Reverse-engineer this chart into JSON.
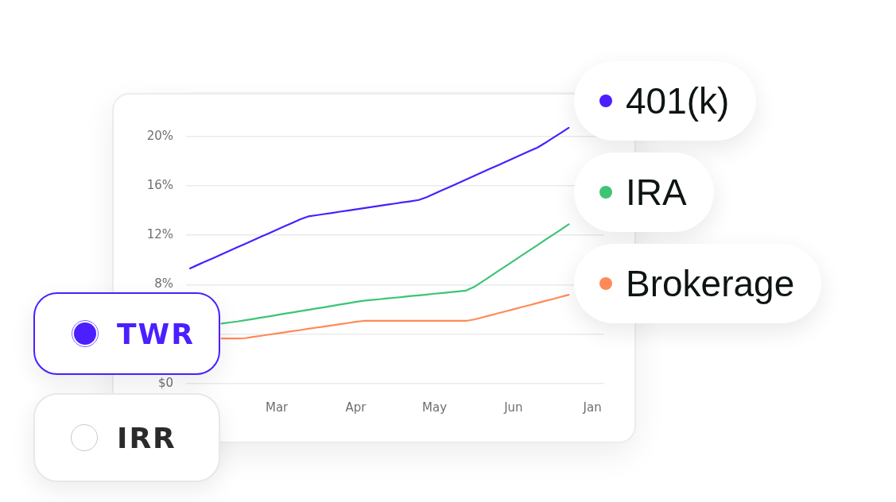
{
  "chart_data": {
    "type": "line",
    "categories": [
      null,
      null,
      null,
      null,
      null,
      null,
      null,
      null,
      null,
      null,
      null,
      "Mar",
      null,
      null,
      null,
      null,
      null,
      null,
      null,
      null,
      null,
      "Apr",
      null,
      null,
      null,
      null,
      null,
      null,
      null,
      null,
      null,
      "May",
      null,
      null,
      null,
      null,
      null,
      null,
      null,
      null,
      null,
      "Jun",
      null,
      null,
      null,
      null,
      null,
      null,
      null,
      null,
      null,
      "Jan",
      null
    ],
    "series": [
      {
        "name": "401(k)",
        "color": "#4b1fff",
        "values": [
          9.32,
          9.61,
          9.89,
          10.17,
          10.46,
          10.74,
          11.03,
          11.31,
          11.59,
          11.88,
          12.16,
          12.45,
          12.73,
          13.01,
          13.3,
          13.53,
          13.62,
          13.72,
          13.81,
          13.91,
          14.0,
          14.1,
          14.19,
          14.29,
          14.38,
          14.48,
          14.57,
          14.67,
          14.76,
          14.86,
          15.09,
          15.37,
          15.66,
          15.94,
          16.23,
          16.52,
          16.8,
          17.09,
          17.38,
          17.66,
          17.95,
          18.24,
          18.52,
          18.81,
          19.09,
          19.47,
          19.88,
          20.29,
          20.7,
          null,
          null,
          null,
          null
        ]
      },
      {
        "name": "IRA",
        "color": "#3dc474",
        "values": [
          null,
          null,
          null,
          null,
          4.85,
          4.94,
          5.02,
          5.12,
          5.22,
          5.33,
          5.43,
          5.54,
          5.65,
          5.75,
          5.86,
          5.96,
          6.07,
          6.17,
          6.28,
          6.39,
          6.49,
          6.6,
          6.7,
          6.76,
          6.82,
          6.89,
          6.95,
          7.01,
          7.08,
          7.14,
          7.2,
          7.27,
          7.33,
          7.39,
          7.45,
          7.52,
          7.81,
          8.23,
          8.65,
          9.08,
          9.5,
          9.92,
          10.35,
          10.77,
          11.19,
          11.62,
          12.04,
          12.46,
          12.89,
          null,
          null,
          null,
          null
        ]
      },
      {
        "name": "Brokerage",
        "color": "#ff8a57",
        "values": [
          null,
          null,
          null,
          null,
          3.65,
          3.65,
          3.65,
          3.67,
          3.77,
          3.86,
          3.96,
          4.05,
          4.14,
          4.24,
          4.33,
          4.43,
          4.52,
          4.61,
          4.71,
          4.8,
          4.89,
          4.99,
          5.07,
          5.07,
          5.07,
          5.07,
          5.07,
          5.07,
          5.07,
          5.07,
          5.07,
          5.07,
          5.07,
          5.07,
          5.07,
          5.07,
          5.18,
          5.34,
          5.51,
          5.68,
          5.84,
          6.01,
          6.18,
          6.34,
          6.51,
          6.68,
          6.84,
          7.01,
          7.18,
          null,
          null,
          null,
          null
        ]
      }
    ],
    "ylim": [
      0,
      23.5
    ],
    "yticks": [
      {
        "value": 0,
        "label": "$0"
      },
      {
        "value": 4,
        "label": null
      },
      {
        "value": 8,
        "label": "8%"
      },
      {
        "value": 12,
        "label": "12%"
      },
      {
        "value": 16,
        "label": "16%"
      },
      {
        "value": 20,
        "label": "20%"
      }
    ],
    "grid": "y",
    "legend": "right",
    "marker": "none",
    "line_style": "solid",
    "annotations": [
      "TWR",
      "IRR"
    ]
  }
}
